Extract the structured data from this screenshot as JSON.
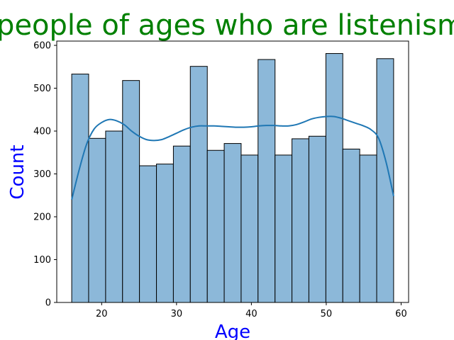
{
  "chart_data": {
    "type": "bar",
    "subtype": "histogram_with_kde",
    "title": "people of ages who are listenism",
    "xlabel": "Age",
    "ylabel": "Count",
    "xlim": [
      14,
      61
    ],
    "ylim": [
      0,
      610
    ],
    "xticks": [
      20,
      30,
      40,
      50,
      60
    ],
    "yticks": [
      0,
      100,
      200,
      300,
      400,
      500,
      600
    ],
    "grid": false,
    "legend": "none",
    "colors": {
      "title": "#008000",
      "labels": "#0000ff",
      "bar_fill": "#8cb8d9",
      "bar_edge": "#000000",
      "kde_line": "#1f77b4"
    },
    "bins": [
      {
        "x0": 16.0,
        "x1": 18.26,
        "count": 533
      },
      {
        "x0": 18.26,
        "x1": 20.53,
        "count": 383
      },
      {
        "x0": 20.53,
        "x1": 22.79,
        "count": 400
      },
      {
        "x0": 22.79,
        "x1": 25.05,
        "count": 518
      },
      {
        "x0": 25.05,
        "x1": 27.32,
        "count": 319
      },
      {
        "x0": 27.32,
        "x1": 29.58,
        "count": 323
      },
      {
        "x0": 29.58,
        "x1": 31.84,
        "count": 365
      },
      {
        "x0": 31.84,
        "x1": 34.11,
        "count": 551
      },
      {
        "x0": 34.11,
        "x1": 36.37,
        "count": 355
      },
      {
        "x0": 36.37,
        "x1": 38.63,
        "count": 371
      },
      {
        "x0": 38.63,
        "x1": 40.89,
        "count": 344
      },
      {
        "x0": 40.89,
        "x1": 43.16,
        "count": 567
      },
      {
        "x0": 43.16,
        "x1": 45.42,
        "count": 344
      },
      {
        "x0": 45.42,
        "x1": 47.68,
        "count": 382
      },
      {
        "x0": 47.68,
        "x1": 49.95,
        "count": 388
      },
      {
        "x0": 49.95,
        "x1": 52.21,
        "count": 581
      },
      {
        "x0": 52.21,
        "x1": 54.47,
        "count": 358
      },
      {
        "x0": 54.47,
        "x1": 56.74,
        "count": 344
      },
      {
        "x0": 56.74,
        "x1": 59.0,
        "count": 569
      }
    ],
    "kde": {
      "x": [
        16,
        17,
        18,
        19,
        20,
        21,
        22,
        23,
        24,
        25,
        26,
        27,
        28,
        29,
        30,
        31,
        32,
        33,
        34,
        35,
        36,
        37,
        38,
        39,
        40,
        41,
        42,
        43,
        44,
        45,
        46,
        47,
        48,
        49,
        50,
        51,
        52,
        53,
        54,
        55,
        56,
        57,
        58,
        59
      ],
      "y": [
        240,
        310,
        370,
        405,
        420,
        427,
        424,
        415,
        400,
        388,
        380,
        378,
        380,
        387,
        395,
        403,
        409,
        412,
        412,
        412,
        411,
        410,
        409,
        409,
        410,
        412,
        413,
        413,
        412,
        412,
        415,
        421,
        428,
        432,
        434,
        434,
        430,
        424,
        418,
        412,
        403,
        383,
        327,
        248
      ]
    }
  }
}
